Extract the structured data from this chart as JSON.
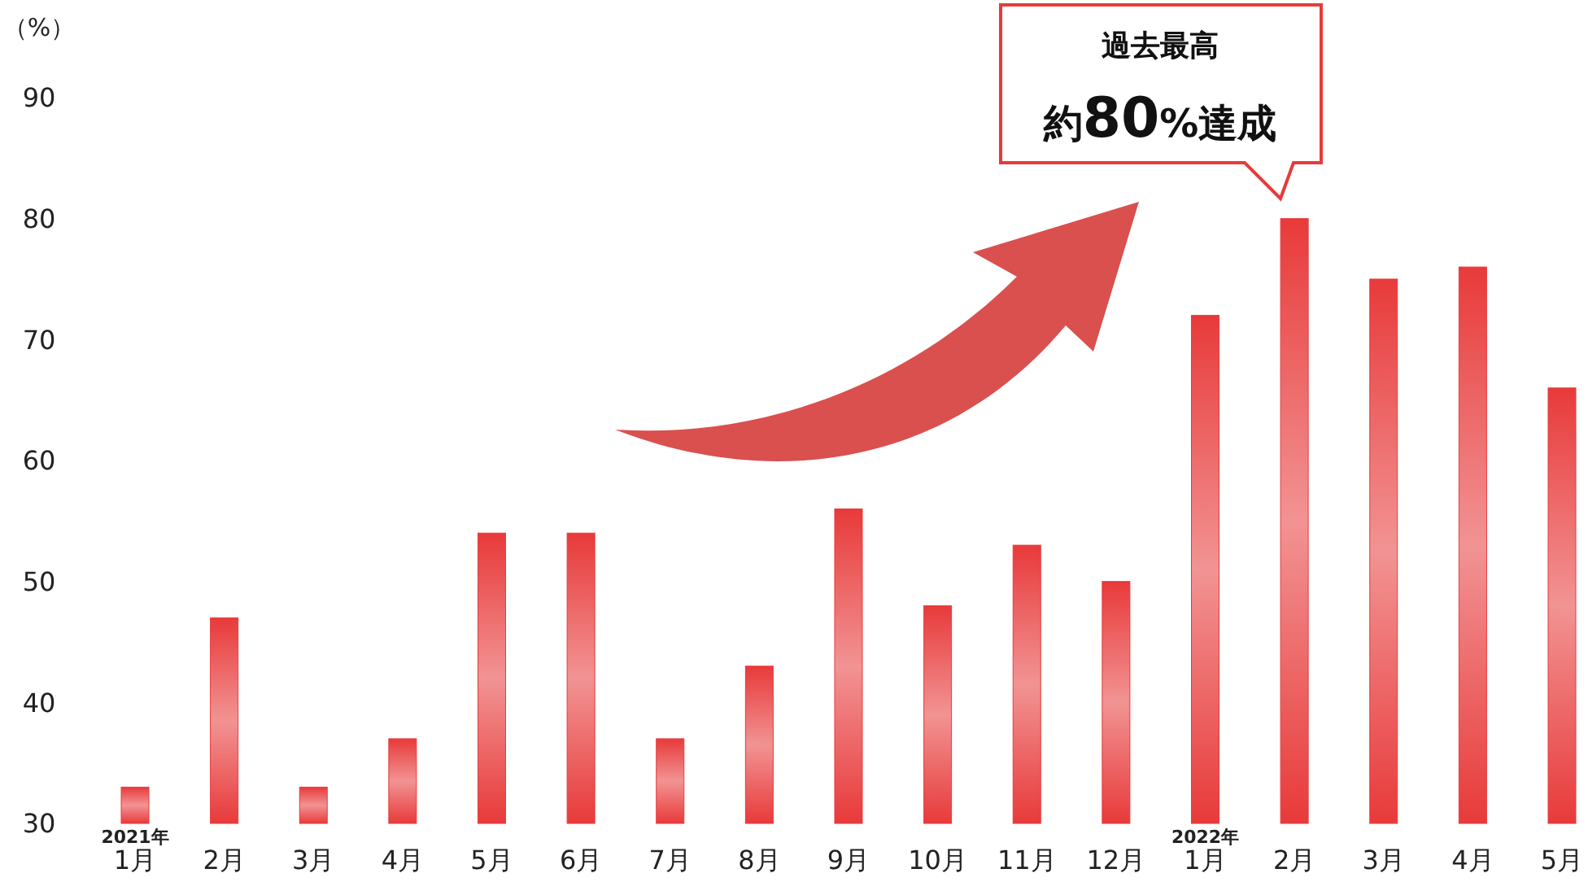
{
  "chart_data": {
    "type": "bar",
    "ylabel": "（%）",
    "categories": [
      "$^{2021年}$1月",
      "2月",
      "3月",
      "4月",
      "5月",
      "6月",
      "7月",
      "8月",
      "9月",
      "10月",
      "11月",
      "12月",
      "$^{2022年}$1月",
      "2月",
      "3月",
      "4月",
      "5月"
    ],
    "values": [
      33,
      47,
      33,
      37,
      54,
      54,
      37,
      43,
      56,
      48,
      53,
      50,
      72,
      80,
      75,
      76,
      66
    ],
    "color": "#e83a3a",
    "ylim": [
      30,
      90
    ],
    "yticks": [
      30,
      40,
      50,
      60,
      70,
      80,
      90
    ],
    "grid": false,
    "annotations": [
      "過去最高",
      "約80%達成"
    ]
  }
}
